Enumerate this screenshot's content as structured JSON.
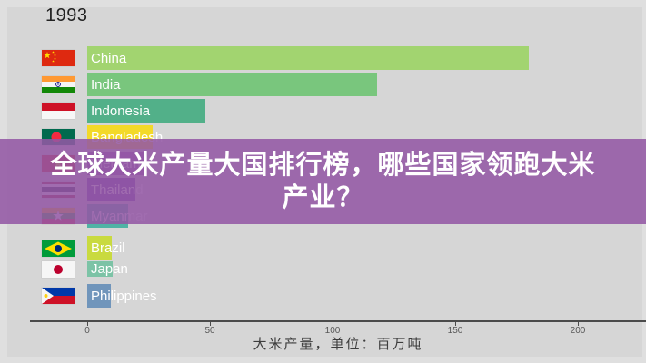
{
  "page": {
    "year": "1993"
  },
  "overlay": {
    "title_line1": "全球大米产量大国排行榜，哪些国家领跑大米",
    "title_line2": "产业？",
    "background_color": "#9357a4",
    "text_color": "#ffffff"
  },
  "axis": {
    "title": "大米产量，单位：百万吨",
    "tick_values": [
      0,
      50,
      100,
      150,
      200
    ]
  },
  "chart_data": {
    "type": "bar",
    "orientation": "horizontal",
    "title_overlay": "全球大米产量大国排行榜，哪些国家领跑大米产业？",
    "year": "1993",
    "xlabel": "大米产量，单位：百万吨",
    "xlim": [
      0,
      228
    ],
    "grid": false,
    "categories": [
      "China",
      "India",
      "Indonesia",
      "Bangladesh",
      "Vietnam",
      "Thailand",
      "Myanmar",
      "Brazil",
      "Japan",
      "Philippines"
    ],
    "values": [
      180,
      118,
      48,
      26.5,
      24,
      19.5,
      16.5,
      10,
      10.5,
      9.5
    ],
    "series": [
      {
        "label": "China",
        "value": 180,
        "color": "#a2d470",
        "flag": "china-flag-icon"
      },
      {
        "label": "India",
        "value": 118,
        "color": "#79c67d",
        "flag": "india-flag-icon"
      },
      {
        "label": "Indonesia",
        "value": 48,
        "color": "#52b089",
        "flag": "indonesia-flag-icon"
      },
      {
        "label": "Bangladesh",
        "value": 26.5,
        "color": "#f3d929",
        "flag": "bangladesh-flag-icon"
      },
      {
        "label": "Vietnam",
        "value": 24,
        "color": "#9a5fb0",
        "flag": "vietnam-flag-icon"
      },
      {
        "label": "Thailand",
        "value": 19.5,
        "color": "#6c3fa8",
        "flag": "thailand-flag-icon"
      },
      {
        "label": "Myanmar",
        "value": 16.5,
        "color": "#4fb3a5",
        "flag": "myanmar-flag-icon"
      },
      {
        "label": "Brazil",
        "value": 10,
        "color": "#c9da3f",
        "flag": "brazil-flag-icon"
      },
      {
        "label": "Japan",
        "value": 10.5,
        "color": "#7cc3a6",
        "flag": "japan-flag-icon"
      },
      {
        "label": "Philippines",
        "value": 9.5,
        "color": "#7095bb",
        "flag": "philippines-flag-icon"
      }
    ]
  }
}
